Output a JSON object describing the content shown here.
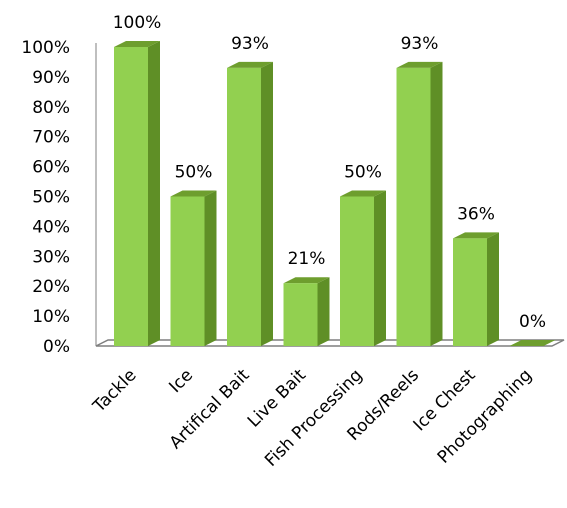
{
  "chart_data": {
    "type": "bar",
    "style": "3d-column",
    "categories": [
      "Tackle",
      "Ice",
      "Artifical Bait",
      "Live Bait",
      "Fish Processing",
      "Rods/Reels",
      "Ice Chest",
      "Photographing"
    ],
    "values": [
      100,
      50,
      93,
      21,
      50,
      93,
      36,
      0
    ],
    "data_labels": [
      "100%",
      "50%",
      "93%",
      "21%",
      "50%",
      "93%",
      "36%",
      "0%"
    ],
    "yticks": [
      "0%",
      "10%",
      "20%",
      "30%",
      "40%",
      "50%",
      "60%",
      "70%",
      "80%",
      "90%",
      "100%"
    ],
    "ylim": [
      0,
      100
    ],
    "grid": false,
    "legend": "none",
    "colors": {
      "bar_front": "#92d050",
      "bar_side": "#5f8f26",
      "bar_top": "#6e9e2e",
      "floor": "#ffffff",
      "floor_edge": "#7f7f7f",
      "axis": "#7f7f7f"
    }
  }
}
